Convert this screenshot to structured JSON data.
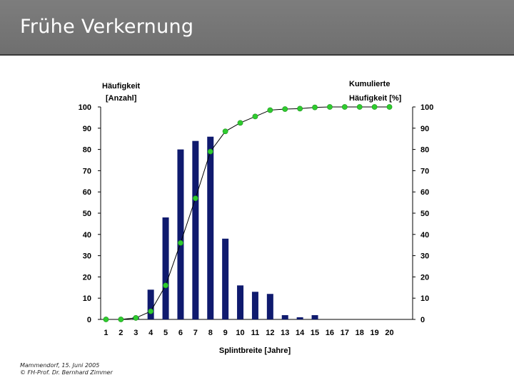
{
  "slide": {
    "title": "Frühe Verkernung",
    "footer_line1": "Mammendorf, 15. Juni 2005",
    "footer_line2": "© FH-Prof. Dr. Bernhard Zimmer"
  },
  "chart_data": {
    "type": "bar",
    "categories": [
      "1",
      "2",
      "3",
      "4",
      "5",
      "6",
      "7",
      "8",
      "9",
      "10",
      "11",
      "12",
      "13",
      "14",
      "15",
      "16",
      "17",
      "18",
      "19",
      "20"
    ],
    "xlabel": "Splintbreite [Jahre]",
    "ylabel_left_line1": "Häufigkeit",
    "ylabel_left_line2": "[Anzahl]",
    "ylabel_right_line1": "Kumulierte",
    "ylabel_right_line2": "Häufigkeit [%]",
    "ylim": [
      0,
      100
    ],
    "y_ticks": [
      "0",
      "10",
      "20",
      "30",
      "40",
      "50",
      "60",
      "70",
      "80",
      "90",
      "100"
    ],
    "grid": false,
    "series": [
      {
        "type": "bar",
        "axis": "left",
        "color": "#0f1a6e",
        "values": [
          0,
          0,
          1,
          14,
          48,
          80,
          84,
          86,
          38,
          16,
          13,
          12,
          2,
          1,
          2,
          0,
          0,
          0,
          0,
          0
        ]
      },
      {
        "type": "line",
        "axis": "right",
        "color": "#2ecc2e",
        "values": [
          0,
          0,
          0.7,
          3.8,
          16,
          36,
          57,
          79,
          88.5,
          92.5,
          95.5,
          98.5,
          99,
          99.2,
          99.8,
          100,
          100,
          100,
          100,
          100
        ]
      }
    ]
  }
}
